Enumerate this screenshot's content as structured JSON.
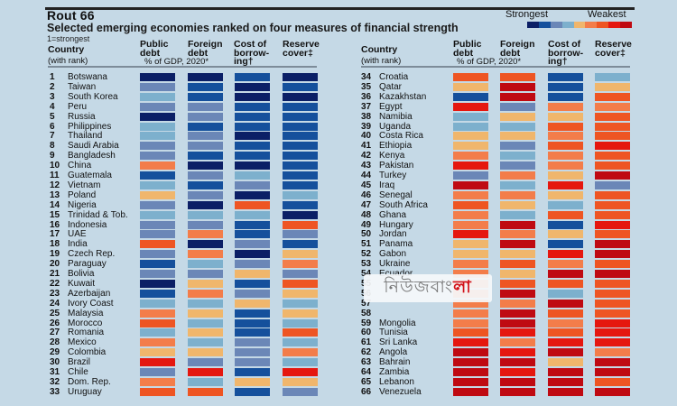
{
  "chart_data": {
    "type": "heatmap",
    "title": "Rout 66",
    "subtitle": "Selected emerging economies ranked on four measures of financial strength",
    "note": "1=strongest",
    "legend": {
      "low_label": "Strongest",
      "high_label": "Weakest",
      "placement": "top-right",
      "scale_levels": [
        1,
        2,
        3,
        4,
        5,
        6,
        7,
        8,
        9
      ],
      "colors": [
        "#0b1f66",
        "#15509c",
        "#6b87b7",
        "#7db0cd",
        "#f0b66c",
        "#f37d4a",
        "#ee5523",
        "#e5170f",
        "#bf0a12"
      ]
    },
    "column_headers": {
      "country": "Country",
      "country_sub": "(with rank)",
      "public_debt": "Public debt",
      "foreign_debt": "Foreign debt",
      "shared_sub": "% of GDP, 2020*",
      "cost_of_borrowing_1": "Cost of",
      "cost_of_borrowing_2": "borrow-",
      "cost_of_borrowing_3": "ing†",
      "reserve_cover_1": "Reserve",
      "reserve_cover_2": "cover‡",
      "public_1": "Public",
      "public_2": "debt",
      "foreign_1": "Foreign",
      "foreign_2": "debt"
    },
    "measures": [
      "Public debt",
      "Foreign debt",
      "Cost of borrowing",
      "Reserve cover"
    ],
    "value_scale": "1 (strongest) to 9 (weakest) colour band",
    "rows": [
      {
        "rank": 1,
        "country": "Botswana",
        "values": [
          1,
          1,
          2,
          1
        ]
      },
      {
        "rank": 2,
        "country": "Taiwan",
        "values": [
          3,
          2,
          1,
          2
        ]
      },
      {
        "rank": 3,
        "country": "South Korea",
        "values": [
          4,
          2,
          1,
          1
        ]
      },
      {
        "rank": 4,
        "country": "Peru",
        "values": [
          3,
          3,
          2,
          2
        ]
      },
      {
        "rank": 5,
        "country": "Russia",
        "values": [
          1,
          3,
          2,
          2
        ]
      },
      {
        "rank": 6,
        "country": "Philippines",
        "values": [
          4,
          2,
          2,
          2
        ]
      },
      {
        "rank": 7,
        "country": "Thailand",
        "values": [
          4,
          3,
          1,
          2
        ]
      },
      {
        "rank": 8,
        "country": "Saudi Arabia",
        "values": [
          3,
          3,
          2,
          2
        ]
      },
      {
        "rank": 9,
        "country": "Bangladesh",
        "values": [
          3,
          2,
          2,
          2
        ]
      },
      {
        "rank": 10,
        "country": "China",
        "values": [
          6,
          1,
          1,
          2
        ]
      },
      {
        "rank": 11,
        "country": "Guatemala",
        "values": [
          2,
          3,
          4,
          2
        ]
      },
      {
        "rank": 12,
        "country": "Vietnam",
        "values": [
          4,
          2,
          3,
          2
        ]
      },
      {
        "rank": 13,
        "country": "Poland",
        "values": [
          5,
          3,
          1,
          4
        ]
      },
      {
        "rank": 14,
        "country": "Nigeria",
        "values": [
          3,
          1,
          7,
          2
        ]
      },
      {
        "rank": 15,
        "country": "Trinidad & Tob.",
        "values": [
          4,
          4,
          4,
          1
        ]
      },
      {
        "rank": 16,
        "country": "Indonesia",
        "values": [
          3,
          3,
          2,
          7
        ]
      },
      {
        "rank": 17,
        "country": "UAE",
        "values": [
          3,
          6,
          2,
          3
        ]
      },
      {
        "rank": 18,
        "country": "India",
        "values": [
          7,
          1,
          3,
          2
        ]
      },
      {
        "rank": 19,
        "country": "Czech Rep.",
        "values": [
          3,
          6,
          1,
          5
        ]
      },
      {
        "rank": 20,
        "country": "Paraguay",
        "values": [
          2,
          4,
          3,
          6
        ]
      },
      {
        "rank": 21,
        "country": "Bolivia",
        "values": [
          3,
          3,
          5,
          3
        ]
      },
      {
        "rank": 22,
        "country": "Kuwait",
        "values": [
          1,
          5,
          2,
          7
        ]
      },
      {
        "rank": 23,
        "country": "Azerbaijan",
        "values": [
          2,
          6,
          3,
          5
        ]
      },
      {
        "rank": 24,
        "country": "Ivory Coast",
        "values": [
          4,
          4,
          5,
          4
        ]
      },
      {
        "rank": 25,
        "country": "Malaysia",
        "values": [
          6,
          5,
          2,
          5
        ]
      },
      {
        "rank": 26,
        "country": "Morocco",
        "values": [
          7,
          4,
          2,
          4
        ]
      },
      {
        "rank": 27,
        "country": "Romania",
        "values": [
          4,
          5,
          2,
          7
        ]
      },
      {
        "rank": 28,
        "country": "Mexico",
        "values": [
          6,
          4,
          3,
          4
        ]
      },
      {
        "rank": 29,
        "country": "Colombia",
        "values": [
          5,
          5,
          3,
          6
        ]
      },
      {
        "rank": 30,
        "country": "Brazil",
        "values": [
          8,
          3,
          3,
          4
        ]
      },
      {
        "rank": 31,
        "country": "Chile",
        "values": [
          3,
          8,
          2,
          8
        ]
      },
      {
        "rank": 32,
        "country": "Dom. Rep.",
        "values": [
          6,
          4,
          5,
          5
        ]
      },
      {
        "rank": 33,
        "country": "Uruguay",
        "values": [
          7,
          7,
          2,
          3
        ]
      },
      {
        "rank": 34,
        "country": "Croatia",
        "values": [
          7,
          7,
          2,
          4
        ]
      },
      {
        "rank": 35,
        "country": "Qatar",
        "values": [
          5,
          9,
          2,
          5
        ]
      },
      {
        "rank": 36,
        "country": "Kazakhstan",
        "values": [
          2,
          9,
          2,
          7
        ]
      },
      {
        "rank": 37,
        "country": "Egypt",
        "values": [
          8,
          3,
          6,
          6
        ]
      },
      {
        "rank": 38,
        "country": "Namibia",
        "values": [
          4,
          5,
          5,
          7
        ]
      },
      {
        "rank": 39,
        "country": "Uganda",
        "values": [
          4,
          4,
          7,
          7
        ]
      },
      {
        "rank": 40,
        "country": "Costa Rica",
        "values": [
          5,
          5,
          6,
          7
        ]
      },
      {
        "rank": 41,
        "country": "Ethiopia",
        "values": [
          5,
          3,
          7,
          8
        ]
      },
      {
        "rank": 42,
        "country": "Kenya",
        "values": [
          6,
          4,
          6,
          7
        ]
      },
      {
        "rank": 43,
        "country": "Pakistan",
        "values": [
          8,
          3,
          6,
          7
        ]
      },
      {
        "rank": 44,
        "country": "Turkey",
        "values": [
          3,
          6,
          5,
          9
        ]
      },
      {
        "rank": 45,
        "country": "Iraq",
        "values": [
          9,
          4,
          8,
          3
        ]
      },
      {
        "rank": 46,
        "country": "Senegal",
        "values": [
          6,
          6,
          5,
          7
        ]
      },
      {
        "rank": 47,
        "country": "South Africa",
        "values": [
          7,
          5,
          4,
          7
        ]
      },
      {
        "rank": 48,
        "country": "Ghana",
        "values": [
          6,
          4,
          7,
          7
        ]
      },
      {
        "rank": 49,
        "country": "Hungary",
        "values": [
          6,
          9,
          2,
          8
        ]
      },
      {
        "rank": 50,
        "country": "Jordan",
        "values": [
          8,
          6,
          5,
          7
        ]
      },
      {
        "rank": 51,
        "country": "Panama",
        "values": [
          5,
          9,
          2,
          9
        ]
      },
      {
        "rank": 52,
        "country": "Gabon",
        "values": [
          5,
          5,
          8,
          9
        ]
      },
      {
        "rank": 53,
        "country": "Ukraine",
        "values": [
          6,
          7,
          6,
          7
        ]
      },
      {
        "rank": 54,
        "country": "Ecuador",
        "values": [
          6,
          5,
          9,
          9
        ]
      },
      {
        "rank": 55,
        "country": "",
        "values": [
          null,
          7,
          7,
          7
        ]
      },
      {
        "rank": 56,
        "country": "",
        "values": [
          null,
          9,
          4,
          7
        ]
      },
      {
        "rank": 57,
        "country": "",
        "values": [
          null,
          6,
          9,
          7
        ]
      },
      {
        "rank": 58,
        "country": "",
        "values": [
          null,
          9,
          7,
          7
        ]
      },
      {
        "rank": 59,
        "country": "Mongolia",
        "values": [
          6,
          9,
          6,
          8
        ]
      },
      {
        "rank": 60,
        "country": "Tunisia",
        "values": [
          7,
          8,
          7,
          8
        ]
      },
      {
        "rank": 61,
        "country": "Sri Lanka",
        "values": [
          8,
          6,
          8,
          8
        ]
      },
      {
        "rank": 62,
        "country": "Angola",
        "values": [
          9,
          8,
          9,
          6
        ]
      },
      {
        "rank": 63,
        "country": "Bahrain",
        "values": [
          9,
          9,
          5,
          9
        ]
      },
      {
        "rank": 64,
        "country": "Zambia",
        "values": [
          9,
          8,
          9,
          9
        ]
      },
      {
        "rank": 65,
        "country": "Lebanon",
        "values": [
          9,
          9,
          9,
          7
        ]
      },
      {
        "rank": 66,
        "country": "Venezuela",
        "values": [
          9,
          9,
          9,
          9
        ]
      }
    ]
  },
  "watermark": {
    "text": "নিউজবাং",
    "accent": "লা"
  }
}
